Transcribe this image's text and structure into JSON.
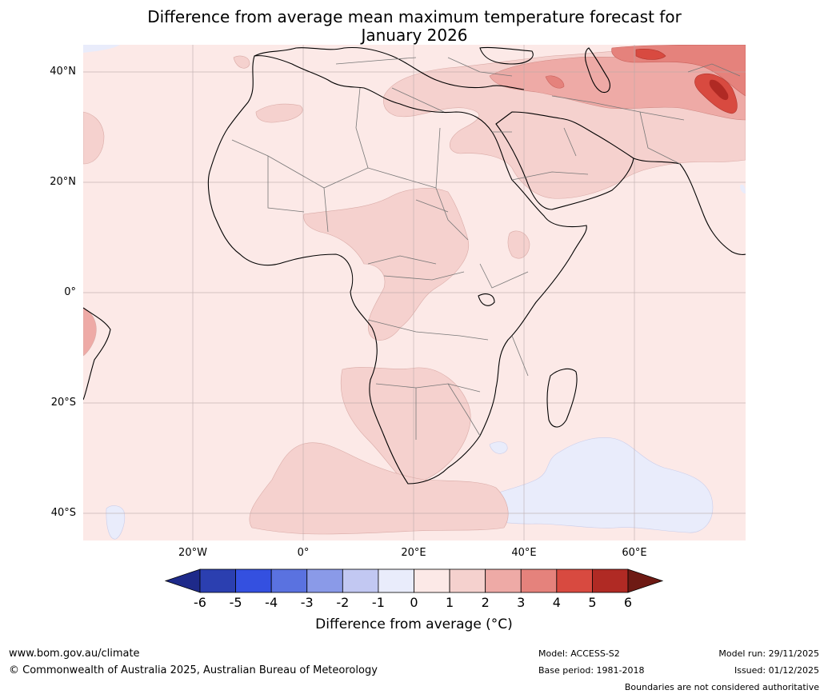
{
  "title_line1": "Difference from average mean maximum temperature forecast for",
  "title_line2": "January 2026",
  "lat_labels": [
    "40°N",
    "20°N",
    "0°",
    "20°S",
    "40°S"
  ],
  "lon_labels": [
    "20°W",
    "0°",
    "20°E",
    "40°E",
    "60°E"
  ],
  "colorbar": {
    "ticks": [
      "-6",
      "-5",
      "-4",
      "-3",
      "-2",
      "-1",
      "0",
      "1",
      "2",
      "3",
      "4",
      "5",
      "6"
    ],
    "colors": [
      "#1e2a8a",
      "#2b3fb0",
      "#3450e0",
      "#5a72e0",
      "#8a9ae8",
      "#c2c8f2",
      "#e9ecfb",
      "#fce9e7",
      "#f5d1ce",
      "#eeaaa6",
      "#e5827c",
      "#d84a40",
      "#b02a24",
      "#6e1a14"
    ],
    "label": "Difference from average (°C)"
  },
  "footer": {
    "url": "www.bom.gov.au/climate",
    "copyright": "© Commonwealth of Australia 2025, Australian Bureau of Meteorology",
    "model": "Model: ACCESS-S2",
    "base_period": "Base period: 1981-2018",
    "model_run": "Model run: 29/11/2025",
    "issued": "Issued: 01/12/2025",
    "disclaimer": "Boundaries are not considered authoritative"
  }
}
